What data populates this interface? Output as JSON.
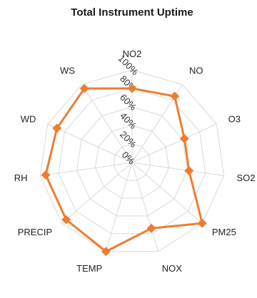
{
  "chart_data": {
    "type": "radar",
    "title": "Total Instrument Uptime",
    "categories": [
      "NO2",
      "NO",
      "O3",
      "SO2",
      "PM25",
      "NOX",
      "TEMP",
      "PRECIP",
      "RH",
      "WD",
      "WS"
    ],
    "tick_labels": [
      "0%",
      "20%",
      "40%",
      "60%",
      "80%",
      "100%"
    ],
    "rlim": [
      0,
      100
    ],
    "grid": true,
    "legend": "none",
    "series": [
      {
        "color": "#ED7D31",
        "values": [
          80,
          85,
          62,
          62,
          100,
          74,
          100,
          94,
          94,
          89,
          95
        ]
      }
    ]
  }
}
